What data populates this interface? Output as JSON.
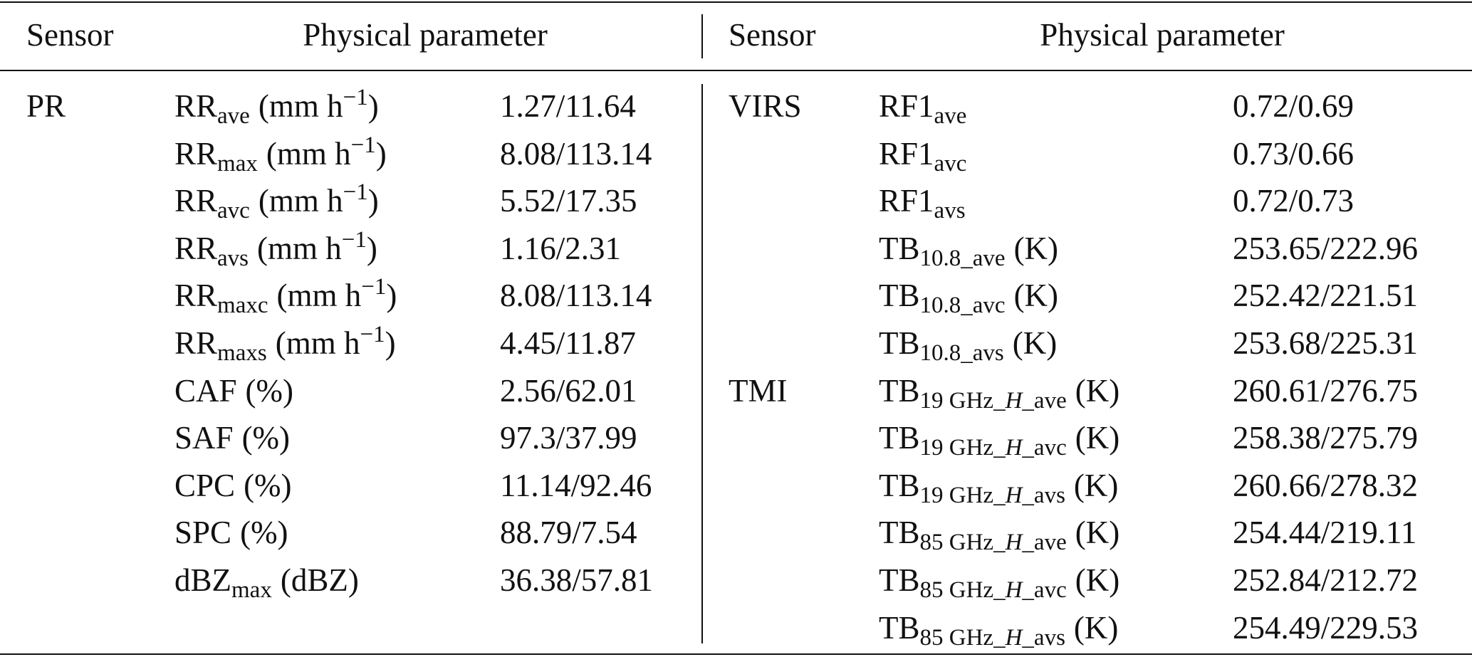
{
  "header": {
    "sensor_left": "Sensor",
    "parameter_left": "Physical parameter",
    "sensor_right": "Sensor",
    "parameter_right": "Physical parameter"
  },
  "left": {
    "rows": [
      {
        "sensor": "PR",
        "name": "RR",
        "sub": "ave",
        "unit": "(mm h",
        "sup": "−1",
        "unit_end": ")",
        "value": "1.27/11.64"
      },
      {
        "name": "RR",
        "sub": "max",
        "unit": "(mm h",
        "sup": "−1",
        "unit_end": ")",
        "value": "8.08/113.14"
      },
      {
        "name": "RR",
        "sub": "avc",
        "unit": "(mm h",
        "sup": "−1",
        "unit_end": ")",
        "value": "5.52/17.35"
      },
      {
        "name": "RR",
        "sub": "avs",
        "unit": "(mm h",
        "sup": "−1",
        "unit_end": ")",
        "value": "1.16/2.31"
      },
      {
        "name": "RR",
        "sub": "maxc",
        "unit": "(mm h",
        "sup": "−1",
        "unit_end": ")",
        "value": "8.08/113.14"
      },
      {
        "name": "RR",
        "sub": "maxs",
        "unit": "(mm h",
        "sup": "−1",
        "unit_end": ")",
        "value": "4.45/11.87"
      },
      {
        "name": "CAF",
        "unit": "(%)",
        "value": "2.56/62.01"
      },
      {
        "name": "SAF",
        "unit": "(%)",
        "value": "97.3/37.99"
      },
      {
        "name": "CPC",
        "unit": "(%)",
        "value": "11.14/92.46"
      },
      {
        "name": "SPC",
        "unit": "(%)",
        "value": "88.79/7.54"
      },
      {
        "name": "dBZ",
        "sub": "max",
        "unit": "(dBZ)",
        "value": "36.38/57.81"
      }
    ]
  },
  "right": {
    "rows": [
      {
        "sensor": "VIRS",
        "name": "RF1",
        "sub": "ave",
        "value": "0.72/0.69"
      },
      {
        "name": "RF1",
        "sub": "avc",
        "value": "0.73/0.66"
      },
      {
        "name": "RF1",
        "sub": "avs",
        "value": "0.72/0.73"
      },
      {
        "name": "TB",
        "sub": "10.8_ave",
        "unit": "(K)",
        "value": "253.65/222.96"
      },
      {
        "name": "TB",
        "sub": "10.8_avc",
        "unit": "(K)",
        "value": "252.42/221.51"
      },
      {
        "name": "TB",
        "sub": "10.8_avs",
        "unit": "(K)",
        "value": "253.68/225.31"
      },
      {
        "sensor": "TMI",
        "name": "TB",
        "sub": "19 GHz_",
        "sub_italic": "H",
        "sub_end": "_ave",
        "unit": "(K)",
        "value": "260.61/276.75"
      },
      {
        "name": "TB",
        "sub": "19 GHz_",
        "sub_italic": "H",
        "sub_end": "_avc",
        "unit": "(K)",
        "value": "258.38/275.79"
      },
      {
        "name": "TB",
        "sub": "19 GHz_",
        "sub_italic": "H",
        "sub_end": "_avs",
        "unit": "(K)",
        "value": "260.66/278.32"
      },
      {
        "name": "TB",
        "sub": "85 GHz_",
        "sub_italic": "H",
        "sub_end": "_ave",
        "unit": "(K)",
        "value": "254.44/219.11"
      },
      {
        "name": "TB",
        "sub": "85 GHz_",
        "sub_italic": "H",
        "sub_end": "_avc",
        "unit": "(K)",
        "value": "252.84/212.72"
      },
      {
        "name": "TB",
        "sub": "85 GHz_",
        "sub_italic": "H",
        "sub_end": "_avs",
        "unit": "(K)",
        "value": "254.49/229.53"
      }
    ]
  }
}
